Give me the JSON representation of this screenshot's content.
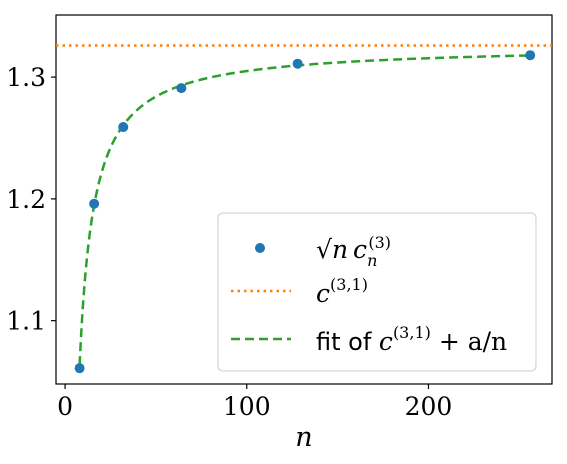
{
  "chart_data": {
    "type": "scatter",
    "xlabel": "n",
    "ylabel": "",
    "xlim": [
      -5,
      268
    ],
    "ylim": [
      1.048,
      1.351
    ],
    "x_ticks": [
      {
        "value": 0,
        "label": "0"
      },
      {
        "value": 100,
        "label": "100"
      },
      {
        "value": 200,
        "label": "200"
      }
    ],
    "y_ticks": [
      {
        "value": 1.1,
        "label": "1.1"
      },
      {
        "value": 1.2,
        "label": "1.2"
      },
      {
        "value": 1.3,
        "label": "1.3"
      }
    ],
    "grid": false,
    "legend_position": "lower-right",
    "series": [
      {
        "name": "√n c_n^(3)",
        "kind": "markers",
        "color": "#1f77b4",
        "x": [
          8,
          16,
          32,
          64,
          128,
          256
        ],
        "y": [
          1.061,
          1.196,
          1.259,
          1.291,
          1.311,
          1.318
        ]
      },
      {
        "name": "c^(3,1)",
        "kind": "hline-dotted",
        "color": "#ff7f0e",
        "y": 1.326
      },
      {
        "name": "fit of c^(3,1) + a/n",
        "kind": "curve-dashed",
        "color": "#2ca02c",
        "c": 1.326,
        "a": -2.1,
        "x_start": 8,
        "x_end": 256
      }
    ]
  },
  "legend": {
    "series1": {
      "base": "√",
      "n": "n",
      "c": "c",
      "sub": "n",
      "sup": "(3)"
    },
    "series2": {
      "c": "c",
      "sup": "(3,1)"
    },
    "series3": {
      "prefix": "fit of ",
      "c": "c",
      "sup": "(3,1)",
      "rest": " + a/n"
    }
  }
}
